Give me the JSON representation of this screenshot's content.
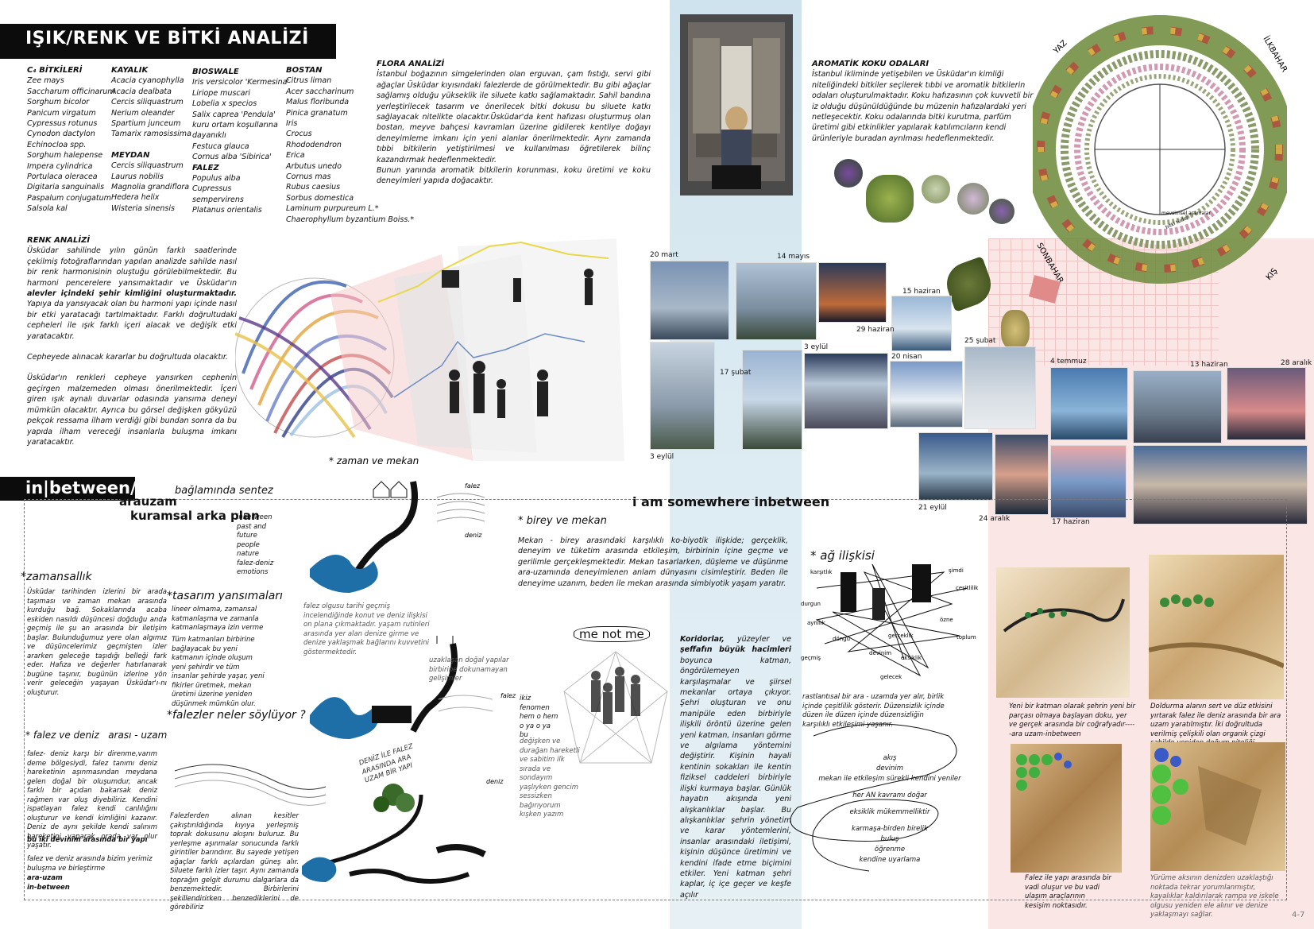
{
  "title": "IŞIK/RENK VE BİTKİ ANALİZİ",
  "plants": {
    "c4": {
      "heading": "C₄ BİTKİLERİ",
      "items": [
        "Zee mays",
        "Saccharum officinarum",
        "Sorghum bicolor",
        "Panicum virgatum",
        "Cypressus rotunus",
        "Cynodon dactylon",
        "Echinocloa spp.",
        "Sorghum halepense",
        "Impera cylindrica",
        "Portulaca oleracea",
        "Digitaria sanguinalis",
        "Paspalum conjugatum",
        "Salsola kal"
      ]
    },
    "kayalik": {
      "heading": "KAYALIK",
      "items": [
        "Acacia cyanophylla",
        "Acacia dealbata",
        "Cercis siliquastrum",
        "Nerium oleander",
        "Spartium junceum",
        "Tamarix ramosissima"
      ]
    },
    "meydan": {
      "heading": "MEYDAN",
      "items": [
        "Cercis siliquastrum",
        "Laurus nobilis",
        "Magnolia grandiflora",
        "Hedera helix",
        "Wisteria sinensis"
      ]
    },
    "bioswale": {
      "heading": "BIOSWALE",
      "items": [
        "Iris versicolor 'Kermesina'",
        "Liriope muscari",
        "Lobelia x specios",
        "Salix caprea 'Pendula'",
        "kuru ortam koşullarına",
        "dayanıklı",
        "Festuca glauca",
        "Cornus alba 'Sibirica'"
      ]
    },
    "falez": {
      "heading": "FALEZ",
      "items": [
        "Populus alba",
        "Cupressus",
        "sempervirens",
        "Platanus orientalis"
      ]
    },
    "bostan": {
      "heading": "BOSTAN",
      "items": [
        "Citrus liman",
        "Acer saccharinum",
        "Malus floribunda",
        "Pinica granatum",
        "Iris",
        "Crocus",
        "Rhododendron",
        "Erica",
        "Arbutus unedo",
        "Cornus mas",
        "Rubus caesius",
        "Sorbus domestica",
        "Laminum purpureum L.*",
        "Chaerophyllum byzantium Boiss.*"
      ]
    }
  },
  "flora": {
    "heading": "FLORA ANALİZİ",
    "text": "İstanbul boğazının simgelerinden olan erguvan, çam fıstığı, servi gibi ağaçlar Üsküdar kıyısındaki falezlerde de görülmektedir. Bu gibi ağaçlar sağlamış olduğu yükseklik ile siluete katkı sağlamaktadır. Sahil bandına yerleştirilecek tasarım ve önerilecek bitki dokusu bu siluete katkı sağlayacak nitelikte olacaktır.Üsküdar'da kent hafızası oluşturmuş olan bostan, meyve bahçesi kavramları üzerine gidilerek kentliye doğayı deneyimleme imkanı için yeni alanlar önerilmektedir. Aynı zamanda tıbbi bitkilerin yetiştirilmesi ve kullanılması öğretilerek bilinç kazandırmak hedeflenmektedir.",
    "text2": "Bunun yanında aromatik bitkilerin korunması, koku üretimi ve koku deneyimleri yapıda doğacaktır."
  },
  "aroma": {
    "heading": "AROMATİK KOKU ODALARI",
    "text": "İstanbul ikliminde yetişebilen ve Üsküdar'ın kimliği niteliğindeki bitkiler seçilerek tıbbi ve aromatik bitkilerin odaları oluşturulmaktadır. Koku hafızasının çok kuvvetli bir iz olduğu düşünüldüğünde bu müzenin hafızalardaki yeri netleşecektir. Koku odalarında bitki kurutma, parfüm üretimi gibi etkinlikler yapılarak katılımcıların kendi ürünleriyle buradan ayrılması hedeflenmektedir."
  },
  "seasons": {
    "yaz": "YAZ",
    "ilkbahar": "İLKBAHAR",
    "sonbahar": "SONBAHAR",
    "kis": "KIŞ",
    "inner1": "mevsimsel aşamalar",
    "inner2": "bitki türleri"
  },
  "renk": {
    "heading": "RENK ANALİZİ",
    "p1a": "Üsküdar sahilinde yılın günün farklı saatlerinde çekilmiş fotoğraflarından yapılan analizde sahilde nasıl bir renk harmonisinin oluştuğu görülebilmektedir. Bu harmoni pencerelere yansımaktadır ve Üsküdar'ın ",
    "p1b": "alevler içindeki şehir kimliğini oluşturmaktadır.",
    "p1c": " Yapıya da yansıyacak olan bu harmoni yapı içinde nasıl bir etki yaratacağı tartılmaktadır. Farklı doğrultudaki cepheleri ile ışık farklı içeri alacak ve değişik etki yaratacaktır.",
    "p2": "Cepheyede alınacak kararlar bu doğrultuda olacaktır.",
    "p3": "Üsküdar'ın renkleri cepheye yansırken cephenin geçirgen malzemeden olması önerilmektedir. İçeri giren ışık aynalı duvarlar odasında yansıma deneyi mümkün olacaktır. Ayrıca bu görsel değişken gökyüzü pekçok ressama ilham verdiği gibi bundan sonra da bu yapıda ilham vereceği insanlarla buluşma imkanı yaratacaktır.",
    "zaman": "* zaman ve mekan"
  },
  "photos": [
    {
      "label": "20 mart"
    },
    {
      "label": "14 mayıs"
    },
    {
      "label": "15 haziran"
    },
    {
      "label": "29 haziran"
    },
    {
      "label": "3 eylül"
    },
    {
      "label": "17 şubat"
    },
    {
      "label": "3 eylül"
    },
    {
      "label": "20 nisan"
    },
    {
      "label": "25 şubat"
    },
    {
      "label": "4 temmuz"
    },
    {
      "label": "13 haziran"
    },
    {
      "label": "28 aralık"
    },
    {
      "label": "21 eylül"
    },
    {
      "label": "24 aralık"
    },
    {
      "label": "17 haziran"
    }
  ],
  "inbetween": {
    "title": "in|between/",
    "subtitle": "bağlamında sentez",
    "arauzam": "arauzam",
    "kuramsal": "kuramsal arka plan",
    "keywords": [
      "inbetween",
      "past and future",
      "people",
      "nature",
      "falez-deniz",
      "emotions"
    ],
    "zamansallik_h": "*zamansallık",
    "zamansallik": "Üsküdar tarihinden izlerini bir arada taşıması ve zaman mekan arasında kurduğu bağ. Sokaklarında acaba eskiden nasıldı düşüncesi doğduğu anda geçmiş ile şu an arasında bir iletişim başlar. Bulunduğumuz yere olan algımız ve düşüncelerimiz geçmişten izler ararken geleceğe taşıdığı belleği fark eder. Hafıza ve değerler hatırlanarak bugüne taşınır, bugünün izlerine yön verir geleceğin yaşayan Üsküdar'ı-nı oluşturur.",
    "tasarim_h": "*tasarım yansımaları",
    "tasarim1": "lineer olmama, zamansal katmanlaşma ve zamanla katmanlaşmaya izin verme",
    "tasarim2": "Tüm katmanları birbirine bağlayacak bu yeni katmanın içinde oluşum yeni şehirdir ve tüm insanlar şehirde yaşar, yeni fikirler üretmek, mekan üretimi üzerine yeniden düşünmek mümkün olur.",
    "falezler_h": "*falezler neler söylüyor ?",
    "falezdeniz_h": "* falez ve deniz   arası - uzam",
    "falezdeniz": "falez- deniz karşı bir direnme,varım deme bölgesiydi, falez tanımı deniz hareketinin aşınmasından meydana gelen doğal bir oluşumdur, ancak farklı bir açıdan bakarsak deniz rağmen var oluş diyebiliriz. Kendini ispatlayan falez kendi canlılığını oluşturur ve kendi kimliğini kazanır. Deniz de aynı şekilde kendi salınım hareketini yaparak orada var olur yaşatır.",
    "ikidevinim": "bu iki devinim arasında bir yapı",
    "falezve": "falez ve deniz arasında bizim yerimiz buluşma ve birleştirme",
    "arauzam2": "ara-uzam",
    "inbetween2": "in-between",
    "falezolgusu": "falez olgusu tarihi geçmiş incelendiğinde konut ve deniz ilişkisi on plana çıkmaktadır. yaşam rutinleri arasında yer alan denize girme ve denize yaklaşmak bağlarını kuvvetini göstermektedir.",
    "falezlerden": "Falezlerden alınan kesitler çakıştırıldığında kıyıya yerleşmiş toprak dokusunu akışını buluruz. Bu yerleşme aşınmalar sonucunda farklı girintiler barındırır. Bu sayede yetişen ağaçlar farklı açılardan güneş alır. Siluete farklı izler taşır. Aynı zamanda toprağın gelgit durumu dalgarlara da benzemektedir. Birbirlerini şekillendirirken benzediklerini de görebiliriz",
    "uzaklasan": "uzaklaşan doğal yapılar birbirine dokunamayan gelişimler",
    "denizfalez": "DENİZ İLE FALEZ ARASINDA ARA UZAM BİR YAPI",
    "falez": "falez",
    "deniz": "deniz",
    "falez2": "falez",
    "deniz2": "deniz"
  },
  "somewhere": {
    "title": "i am somewhere inbetween",
    "birey_h": "* birey ve mekan",
    "birey": "Mekan - birey arasındaki karşılıklı ko-biyotik ilişkide; gerçeklik, deneyim ve tüketim arasında etkileşim, birbirinin içine geçme ve gerilimle gerçekleşmektedir. Mekan tasarlarken, düşleme ve düşünme ara-uzamında deneyimlenen anlam dünyasını cisimleştirir. Beden ile deneyime uzanım, beden ile mekan arasında simbiyotik yaşam yaratır.",
    "menotme": "me not me",
    "ikiz": "ikiz fenomen hem o hem o ya o ya bu",
    "degisken": "değişken ve durağan hareketli ve sabitim ilk sırada ve sondayım yaşlıyken gencim sessizken bağırıyorum kışken yazım",
    "koridor_b": "Koridorlar,",
    "koridor": " yüzeyler ve ",
    "koridor_b2": "şeffafın büyük hacimleri",
    "koridor2": " boyunca katman, öngörülemeyen karşılaşmalar ve şiirsel mekanlar ortaya çıkıyor. Şehri oluşturan ve onu manipüle eden birbiriyle ilişkili öröntü üzerine gelen yeni katman, insanları görme ve algılama yöntemini değiştirir. Kişinin hayali kentinin sokakları ile kentin fiziksel caddeleri birbiriyle ilişki kurmaya başlar. Günlük hayatın akışında yeni alışkanlıklar başlar. Bu alışkanlıklar şehrin yönetim ve karar yöntemlerini, insanlar arasındaki iletişimi, kişinin düşünce üretimini ve kendini ifade etme biçimini etkiler. Yeni katman şehri kaplar, iç içe geçer ve keşfe açılır"
  },
  "ag": {
    "heading": "* ağ ilişkisi",
    "words": [
      "karşıtlık",
      "şimdi",
      "çeşitlilik",
      "durgun",
      "aynılık",
      "özne",
      "döngü",
      "gerçeklik",
      "toplum",
      "devinim",
      "eksiklik",
      "geçmiş",
      "gelecek"
    ],
    "rast": "rastlantısal bir ara - uzamda yer alır, birlik içinde çeşitlilik gösterir. Düzensizlik içinde düzen ile düzen içinde düzensizliğin karşılıklı etkileşimi yaşanır.",
    "loop": [
      "akış",
      "devinim",
      "mekan ile etkileşim sürekli kendini yeniler",
      "her AN kavramı doğar",
      "eksiklik mükemmelliktir",
      "karmaşa-birden birelik",
      "buluş",
      "öğrenme",
      "kendine uyarlama"
    ]
  },
  "models": {
    "c1": "Yeni bir katman olarak şehrin yeni bir parçası olmaya başlayan doku, yer ve gerçek arasında bir coğrafyadır-----ara uzam-inbetween",
    "c2": "Doldurma alanın sert ve düz etkisini yırtarak falez ile deniz arasında bir ara uzam yaratılmıştır. İki doğrultuda verilmiş çelişkili olan organik çizgi sahilde yeniden doğum niteliği taşımaktadır.",
    "c3": "Falez ile yapı arasında bir vadi oluşur ve bu vadi ulaşım araçlarının kesişim noktasıdır.",
    "c4": "Yürüme aksının denizden uzaklaştığı noktada tekrar yorumlanmıştır, kayalıklar kaldırılarak rampa ve iskele olgusu yeniden ele alınır ve denize yaklaşmayı sağlar."
  },
  "pagenum": "4-7",
  "colors": {
    "accent": "#0c0c0c",
    "blue_band": "#cfe3ee",
    "pink_band": "#fbe6e6",
    "sea_blue": "#1e6fa8"
  }
}
